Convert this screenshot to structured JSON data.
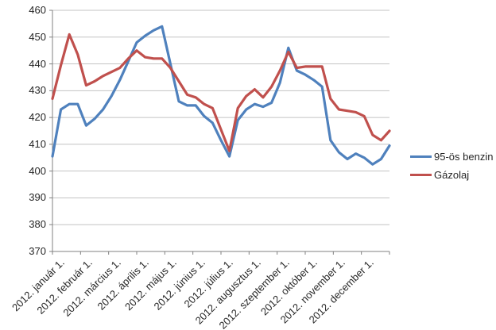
{
  "chart_data": {
    "type": "line",
    "title": "",
    "xlabel": "",
    "ylabel": "",
    "ylim": [
      370,
      460
    ],
    "y_ticks": [
      370,
      380,
      390,
      400,
      410,
      420,
      430,
      440,
      450,
      460
    ],
    "x_tick_labels": [
      "2012. január 1.",
      "2012. február 1.",
      "2012. március 1.",
      "2012. április 1.",
      "2012. május 1.",
      "2012. június 1.",
      "2012. július 1.",
      "2012. augusztus 1.",
      "2012. szeptember 1.",
      "2012. október 1.",
      "2012. november 1.",
      "2012. december 1."
    ],
    "grid": true,
    "gridline_color": "#c3c3c3",
    "axis_color": "#808080",
    "legend_position": "right",
    "series": [
      {
        "name": "95-ös benzin",
        "color": "#4F81BD",
        "values": [
          405.5,
          423,
          425,
          425,
          417,
          419.5,
          423,
          428,
          434,
          441,
          448,
          450.5,
          452.5,
          454,
          440,
          426,
          424.5,
          424.5,
          420.5,
          418,
          411.5,
          405.5,
          419,
          423,
          425,
          424,
          425.5,
          433,
          446,
          437.5,
          436,
          434,
          431.5,
          411.5,
          407,
          404.5,
          406.5,
          405,
          402.5,
          404.5,
          409.5
        ]
      },
      {
        "name": "Gázolaj",
        "color": "#C0504D",
        "values": [
          427,
          439.5,
          451,
          443.5,
          432,
          433.5,
          435.5,
          437,
          438.5,
          442,
          445,
          442.5,
          442,
          442,
          438.5,
          433.5,
          428.5,
          427.5,
          425,
          423.5,
          415.5,
          407.5,
          423.5,
          428,
          430.5,
          427.5,
          431.5,
          437.5,
          444.5,
          438.5,
          439,
          439,
          439,
          427,
          423,
          422.5,
          422,
          420.5,
          413.5,
          411.5,
          415
        ]
      }
    ]
  }
}
